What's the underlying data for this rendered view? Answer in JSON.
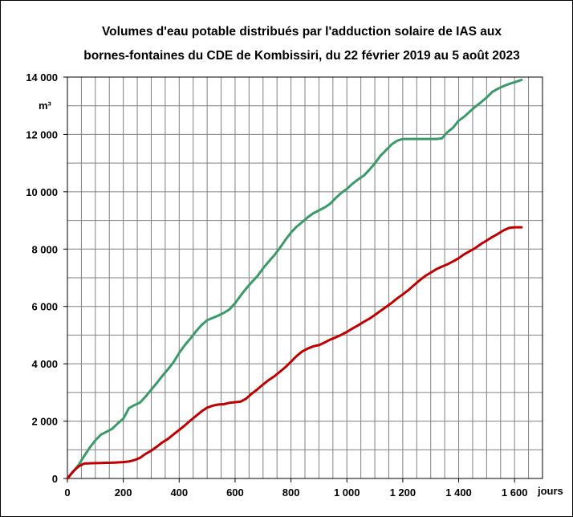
{
  "chart_data": {
    "type": "line",
    "title_lines": [
      "Volumes d'eau potable distribués par l'adduction solaire de IAS aux",
      "bornes-fontaines du CDE de Kombissiri, du 22 février 2019 au 5 août 2023"
    ],
    "xlabel": "jours",
    "ylabel": "m³",
    "xlim": [
      0,
      1700
    ],
    "ylim": [
      0,
      14000
    ],
    "x_ticks": [
      0,
      200,
      400,
      600,
      800,
      1000,
      1200,
      1400,
      1600
    ],
    "x_tick_labels": [
      "0",
      "200",
      "400",
      "600",
      "800",
      "1 000",
      "1 200",
      "1 400",
      "1 600"
    ],
    "y_ticks": [
      0,
      2000,
      4000,
      6000,
      8000,
      10000,
      12000,
      14000
    ],
    "y_tick_labels": [
      "0",
      "2 000",
      "4 000",
      "6 000",
      "8 000",
      "10 000",
      "12 000",
      "14 000"
    ],
    "grid": true,
    "series": [
      {
        "color": "#3a9a6a",
        "x": [
          0,
          20,
          40,
          60,
          80,
          100,
          120,
          140,
          160,
          180,
          200,
          220,
          240,
          260,
          280,
          300,
          320,
          340,
          360,
          380,
          400,
          420,
          440,
          460,
          480,
          500,
          520,
          540,
          560,
          580,
          600,
          620,
          640,
          660,
          680,
          700,
          720,
          740,
          760,
          780,
          800,
          820,
          840,
          860,
          880,
          900,
          920,
          940,
          960,
          980,
          1000,
          1020,
          1040,
          1060,
          1080,
          1100,
          1120,
          1140,
          1160,
          1180,
          1200,
          1220,
          1240,
          1260,
          1280,
          1300,
          1320,
          1340,
          1360,
          1380,
          1400,
          1420,
          1440,
          1460,
          1480,
          1500,
          1520,
          1540,
          1560,
          1580,
          1600,
          1625
        ],
        "y": [
          0,
          230,
          470,
          780,
          1080,
          1330,
          1530,
          1630,
          1730,
          1920,
          2080,
          2450,
          2560,
          2650,
          2860,
          3100,
          3330,
          3580,
          3810,
          4060,
          4380,
          4650,
          4880,
          5130,
          5350,
          5520,
          5600,
          5680,
          5780,
          5900,
          6110,
          6380,
          6630,
          6850,
          7060,
          7330,
          7560,
          7780,
          8040,
          8320,
          8580,
          8780,
          8940,
          9110,
          9250,
          9350,
          9450,
          9580,
          9780,
          9960,
          10100,
          10280,
          10430,
          10560,
          10760,
          10990,
          11250,
          11450,
          11650,
          11780,
          11840,
          11840,
          11840,
          11840,
          11840,
          11840,
          11840,
          11860,
          12080,
          12240,
          12480,
          12620,
          12800,
          12970,
          13120,
          13290,
          13480,
          13590,
          13680,
          13760,
          13820,
          13900
        ]
      },
      {
        "color": "#c00000",
        "x": [
          0,
          20,
          40,
          60,
          80,
          100,
          120,
          140,
          160,
          180,
          200,
          220,
          240,
          260,
          280,
          300,
          320,
          340,
          360,
          380,
          400,
          420,
          440,
          460,
          480,
          500,
          520,
          540,
          560,
          580,
          600,
          620,
          640,
          660,
          680,
          700,
          720,
          740,
          760,
          780,
          800,
          820,
          840,
          860,
          880,
          900,
          920,
          940,
          960,
          980,
          1000,
          1020,
          1040,
          1060,
          1080,
          1100,
          1120,
          1140,
          1160,
          1180,
          1200,
          1220,
          1240,
          1260,
          1280,
          1300,
          1320,
          1340,
          1360,
          1380,
          1400,
          1420,
          1440,
          1460,
          1480,
          1500,
          1520,
          1540,
          1560,
          1580,
          1600,
          1625
        ],
        "y": [
          0,
          240,
          420,
          520,
          530,
          535,
          540,
          545,
          550,
          560,
          570,
          590,
          640,
          720,
          860,
          970,
          1110,
          1260,
          1380,
          1540,
          1690,
          1850,
          2020,
          2180,
          2340,
          2470,
          2540,
          2580,
          2590,
          2640,
          2660,
          2680,
          2790,
          2960,
          3110,
          3280,
          3430,
          3560,
          3720,
          3880,
          4070,
          4270,
          4430,
          4530,
          4610,
          4650,
          4740,
          4840,
          4920,
          5010,
          5110,
          5230,
          5340,
          5460,
          5570,
          5700,
          5840,
          5980,
          6120,
          6280,
          6420,
          6570,
          6740,
          6910,
          7060,
          7180,
          7300,
          7390,
          7470,
          7570,
          7680,
          7820,
          7930,
          8040,
          8180,
          8300,
          8420,
          8530,
          8650,
          8740,
          8760,
          8760
        ]
      }
    ]
  }
}
